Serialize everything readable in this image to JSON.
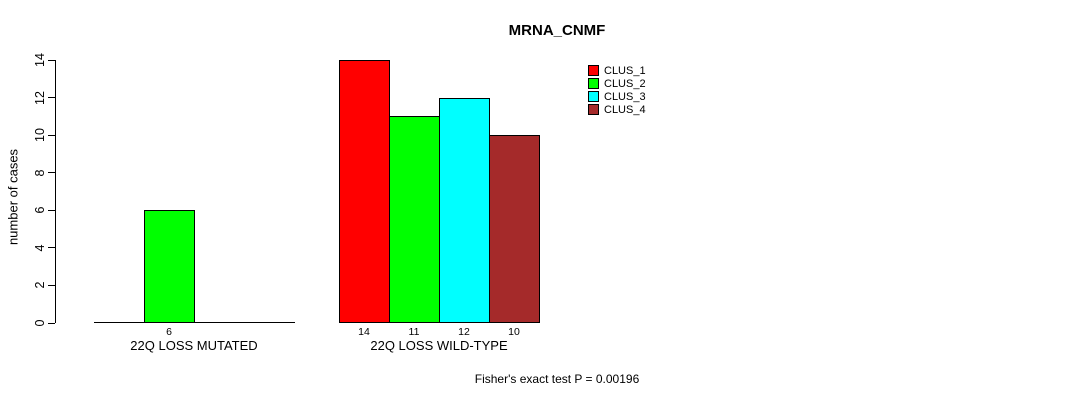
{
  "chart_data": {
    "type": "bar",
    "title": "MRNA_CNMF",
    "ylabel": "number of cases",
    "xlabel": "",
    "footnote": "Fisher's exact test P = 0.00196",
    "ylim": [
      0,
      14
    ],
    "yticks": [
      0,
      2,
      4,
      6,
      8,
      10,
      12,
      14
    ],
    "grid": false,
    "legend_position": "top-right",
    "axis_color": "#000000",
    "background_color": "#ffffff",
    "series": [
      {
        "name": "CLUS_1",
        "color": "#ff0000"
      },
      {
        "name": "CLUS_2",
        "color": "#00ff00"
      },
      {
        "name": "CLUS_3",
        "color": "#00ffff"
      },
      {
        "name": "CLUS_4",
        "color": "#a52a2a"
      }
    ],
    "categories": [
      "22Q LOSS MUTATED",
      "22Q LOSS WILD-TYPE"
    ],
    "groups": [
      {
        "label": "22Q LOSS MUTATED",
        "values": [
          0,
          6,
          0,
          0
        ]
      },
      {
        "label": "22Q LOSS WILD-TYPE",
        "values": [
          14,
          11,
          12,
          10
        ]
      }
    ]
  }
}
